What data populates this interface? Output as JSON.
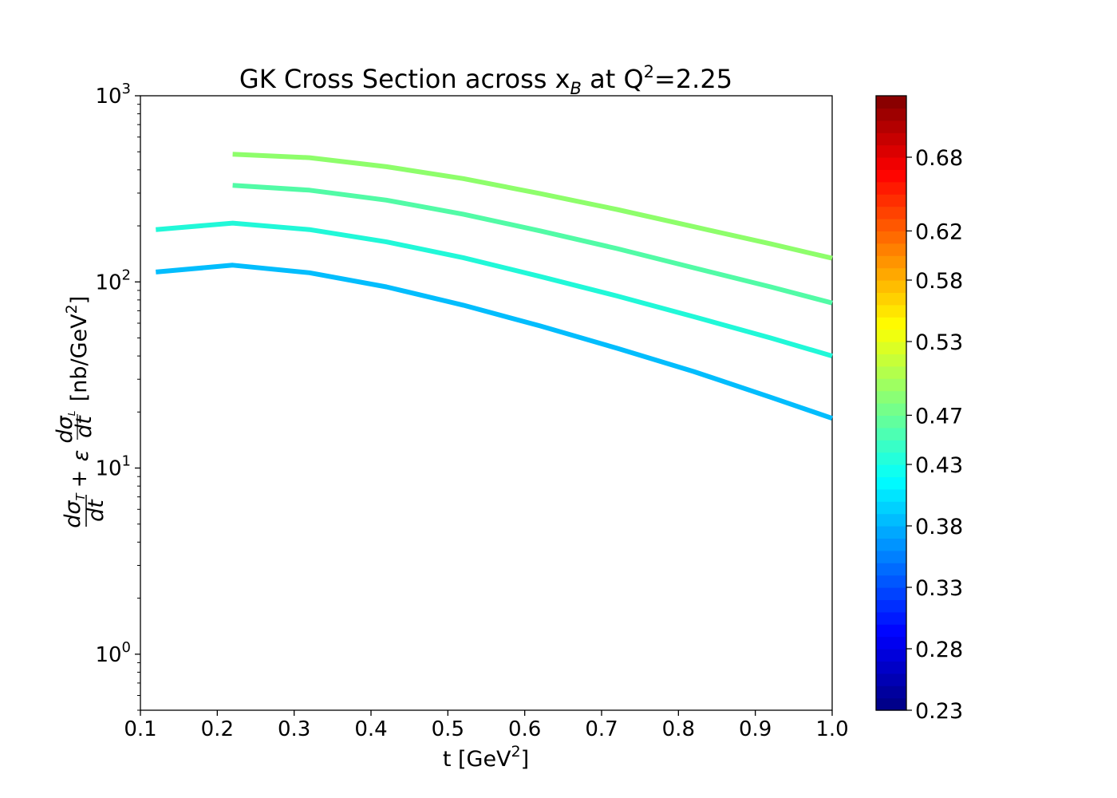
{
  "chart_data": {
    "type": "line",
    "title_main": "GK Cross Section across x",
    "title_sub": "B",
    "title_mid": " at Q",
    "title_sup": "2",
    "title_end": "=2.25",
    "xlabel_main": "t [GeV",
    "xlabel_sup": "2",
    "xlabel_end": "]",
    "ylabel": "dσT/dt + ε dσL/dt [nb/GeV²]",
    "x_ticks": [
      "0.1",
      "0.2",
      "0.3",
      "0.4",
      "0.5",
      "0.6",
      "0.7",
      "0.8",
      "0.9",
      "1.0"
    ],
    "y_ticks": [
      {
        "base": "10",
        "exp": "0",
        "value": 1
      },
      {
        "base": "10",
        "exp": "1",
        "value": 10
      },
      {
        "base": "10",
        "exp": "2",
        "value": 100
      },
      {
        "base": "10",
        "exp": "3",
        "value": 1000
      }
    ],
    "xlim": [
      0.1,
      1.0
    ],
    "ylim": [
      0.5,
      1000
    ],
    "yscale": "log",
    "series": [
      {
        "color": "#02bdfd",
        "x": [
          0.12,
          0.22,
          0.32,
          0.42,
          0.52,
          0.62,
          0.72,
          0.82,
          0.92,
          1.0
        ],
        "y": [
          113,
          123,
          112,
          94,
          75,
          58,
          44,
          33,
          24,
          18.5
        ]
      },
      {
        "color": "#21f8d8",
        "x": [
          0.12,
          0.22,
          0.32,
          0.42,
          0.52,
          0.62,
          0.72,
          0.82,
          0.92,
          1.0
        ],
        "y": [
          191,
          207,
          191,
          164,
          135,
          107,
          84,
          65,
          50,
          40
        ]
      },
      {
        "color": "#52fba6",
        "x": [
          0.22,
          0.32,
          0.42,
          0.52,
          0.62,
          0.72,
          0.82,
          0.92,
          1.0
        ],
        "y": [
          330,
          311,
          275,
          231,
          188,
          151,
          119,
          94,
          77
        ]
      },
      {
        "color": "#8efe6b",
        "x": [
          0.22,
          0.32,
          0.42,
          0.52,
          0.62,
          0.72,
          0.82,
          0.92,
          1.0
        ],
        "y": [
          485,
          465,
          416,
          359,
          298,
          245,
          198,
          160,
          134
        ]
      }
    ],
    "colorbar": {
      "colormap": "jet",
      "range": [
        0.23,
        0.73
      ],
      "ticks": [
        "0.23",
        "0.28",
        "0.33",
        "0.38",
        "0.43",
        "0.47",
        "0.53",
        "0.58",
        "0.62",
        "0.68"
      ],
      "tick_values": [
        0.23,
        0.28,
        0.33,
        0.38,
        0.43,
        0.47,
        0.53,
        0.58,
        0.62,
        0.68
      ]
    },
    "grid": false,
    "legend": "none"
  }
}
